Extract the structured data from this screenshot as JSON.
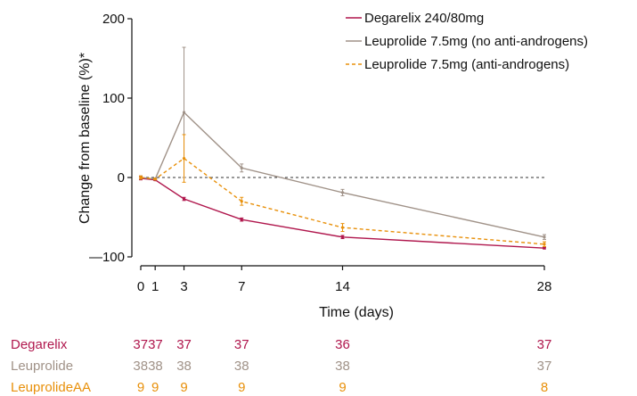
{
  "chart_data": {
    "type": "line",
    "xlabel": "Time (days)",
    "ylabel": "Change from baseline (%)*",
    "xlim": [
      0,
      28
    ],
    "ylim": [
      -100,
      200
    ],
    "x_ticks": [
      0,
      1,
      3,
      7,
      14,
      28
    ],
    "y_ticks": [
      {
        "value": 200,
        "label": "200"
      },
      {
        "value": 100,
        "label": "100"
      },
      {
        "value": 0,
        "label": "0"
      },
      {
        "value": -100,
        "label": "—100"
      }
    ],
    "reference_line": 0,
    "legend_position": "top-right",
    "series": [
      {
        "name": "Degarelix 240/80mg",
        "color": "#b0174d",
        "dash": "solid",
        "points": [
          {
            "x": 0,
            "y": -1,
            "err": 2
          },
          {
            "x": 1,
            "y": -3,
            "err": 1
          },
          {
            "x": 3,
            "y": -27,
            "err": 2
          },
          {
            "x": 7,
            "y": -53,
            "err": 2
          },
          {
            "x": 14,
            "y": -75,
            "err": 2
          },
          {
            "x": 28,
            "y": -89,
            "err": 1
          }
        ]
      },
      {
        "name": "Leuprolide 7.5mg (no anti-androgens)",
        "color": "#a09288",
        "dash": "solid",
        "points": [
          {
            "x": 0,
            "y": 0,
            "err": 2
          },
          {
            "x": 1,
            "y": -2,
            "err": 1
          },
          {
            "x": 3,
            "y": 82,
            "err": 82
          },
          {
            "x": 7,
            "y": 12,
            "err": 5
          },
          {
            "x": 14,
            "y": -19,
            "err": 4
          },
          {
            "x": 28,
            "y": -75,
            "err": 3
          }
        ]
      },
      {
        "name": "Leuprolide 7.5mg (anti-androgens)",
        "color": "#e8900a",
        "dash": "dashed",
        "points": [
          {
            "x": 0,
            "y": 0,
            "err": 2
          },
          {
            "x": 1,
            "y": -2,
            "err": 1
          },
          {
            "x": 3,
            "y": 24,
            "err": 30
          },
          {
            "x": 7,
            "y": -30,
            "err": 5
          },
          {
            "x": 14,
            "y": -63,
            "err": 5
          },
          {
            "x": 28,
            "y": -84,
            "err": 3
          }
        ]
      }
    ]
  },
  "at_risk_table": {
    "rows": [
      {
        "label": "Degarelix",
        "color": "#b0174d",
        "cells": [
          {
            "x": 0.5,
            "text": "3737"
          },
          {
            "x": 3,
            "text": "37"
          },
          {
            "x": 7,
            "text": "37"
          },
          {
            "x": 14,
            "text": "36"
          },
          {
            "x": 28,
            "text": "37"
          }
        ]
      },
      {
        "label": "Leuprolide",
        "color": "#a09288",
        "cells": [
          {
            "x": 0.5,
            "text": "3838"
          },
          {
            "x": 3,
            "text": "38"
          },
          {
            "x": 7,
            "text": "38"
          },
          {
            "x": 14,
            "text": "38"
          },
          {
            "x": 28,
            "text": "37"
          }
        ]
      },
      {
        "label": "LeuprolideAA",
        "color": "#e8900a",
        "cells": [
          {
            "x": 0,
            "text": "9"
          },
          {
            "x": 1,
            "text": "9"
          },
          {
            "x": 3,
            "text": "9"
          },
          {
            "x": 7,
            "text": "9"
          },
          {
            "x": 14,
            "text": "9"
          },
          {
            "x": 28,
            "text": "8"
          }
        ]
      }
    ]
  }
}
